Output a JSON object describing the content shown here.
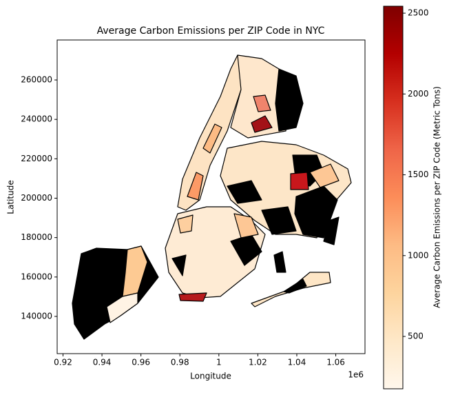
{
  "chart_data": {
    "type": "choropleth",
    "title": "Average Carbon Emissions per ZIP Code in NYC",
    "x_label": "Longitude",
    "y_label": "Latitude",
    "x_offset_label": "1e6",
    "xlim": [
      0.917,
      1.075
    ],
    "xticks": [
      0.92,
      0.94,
      0.96,
      0.98,
      1.0,
      1.02,
      1.04,
      1.06
    ],
    "ylim": [
      121100,
      280300
    ],
    "yticks": [
      140000,
      160000,
      180000,
      200000,
      220000,
      240000,
      260000
    ],
    "colorbar": {
      "label": "Average Carbon Emissions per ZIP Code (Metric Tons)",
      "clim": [
        176,
        2543
      ],
      "ticks": [
        500,
        1000,
        1500,
        2000,
        2500
      ],
      "colors": [
        "#fff7ec",
        "#fee8c8",
        "#fdd49e",
        "#fdbb84",
        "#fc8d59",
        "#ef6548",
        "#d7301f",
        "#b30000",
        "#7f0000"
      ]
    }
  }
}
